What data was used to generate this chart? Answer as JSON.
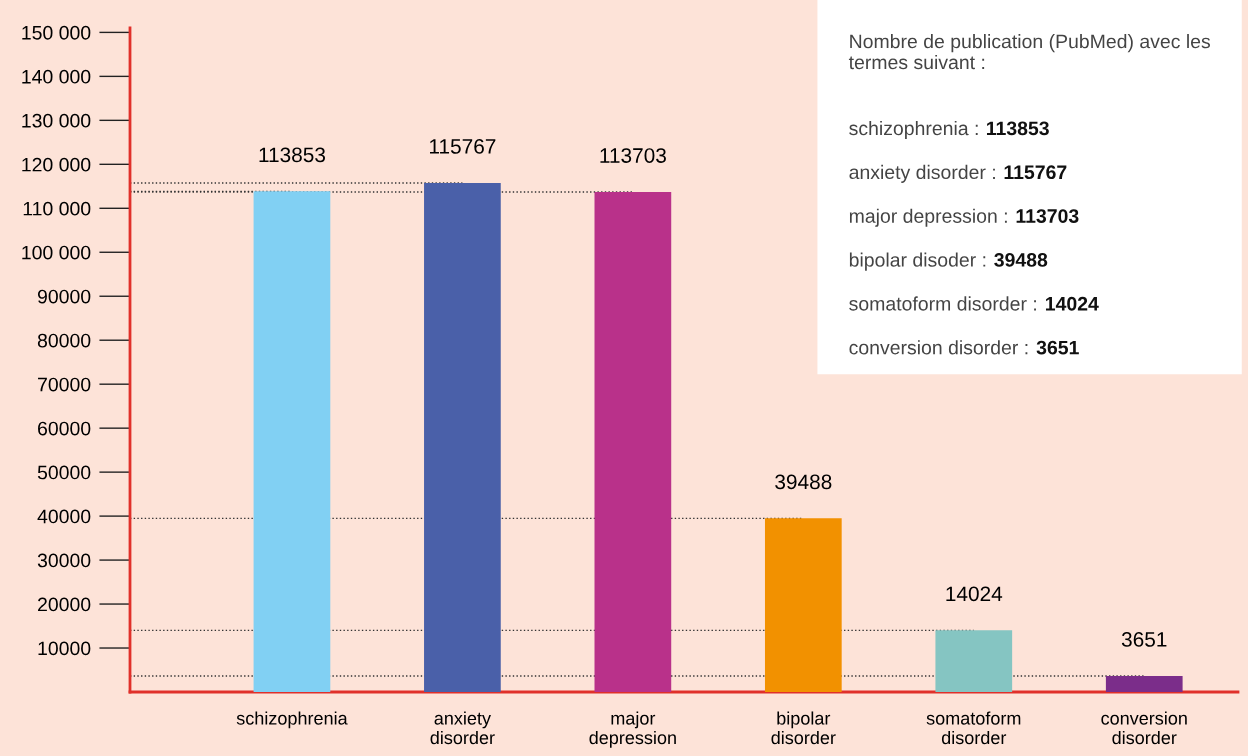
{
  "chart_data": {
    "type": "bar",
    "categories": [
      "schizophrenia",
      "anxiety\ndisorder",
      "major\ndepression",
      "bipolar\ndisorder",
      "somatoform\ndisorder",
      "conversion\ndisorder"
    ],
    "values": [
      113853,
      115767,
      113703,
      39488,
      14024,
      3651
    ],
    "colors": [
      "#81d0f3",
      "#4a60a9",
      "#b9318a",
      "#f29100",
      "#85c5c2",
      "#7b2d8a"
    ],
    "data_labels": true,
    "ylim": [
      0,
      151000
    ],
    "yticks": [
      10000,
      20000,
      30000,
      40000,
      50000,
      60000,
      70000,
      80000,
      90000,
      {
        "value": 100000,
        "label": "100 000"
      },
      {
        "value": 110000,
        "label": "110 000"
      },
      {
        "value": 120000,
        "label": "120 000"
      },
      {
        "value": 130000,
        "label": "130 000"
      },
      {
        "value": 140000,
        "label": "140 000"
      },
      {
        "value": 150000,
        "label": "150 000"
      }
    ],
    "ref_lines": [
      {
        "axis": "y",
        "value": 113853,
        "line_style": "dotted",
        "color": "#333333"
      },
      {
        "axis": "y",
        "value": 115767,
        "line_style": "dotted",
        "color": "#333333"
      },
      {
        "axis": "y",
        "value": 113703,
        "line_style": "dotted",
        "color": "#333333"
      },
      {
        "axis": "y",
        "value": 39488,
        "line_style": "dotted",
        "color": "#333333"
      },
      {
        "axis": "y",
        "value": 14024,
        "line_style": "dotted",
        "color": "#333333"
      },
      {
        "axis": "y",
        "value": 3651,
        "line_style": "dotted",
        "color": "#333333"
      }
    ],
    "grid": false,
    "annotations": [
      "Nombre de publication (PubMed) avec les termes suivant :",
      "schizophrenia : 113853",
      "anxiety disorder : 115767",
      "major depression : 113703",
      "bipolar disoder : 39488",
      "somatoform disorder : 14024",
      "conversion disorder : 3651"
    ]
  }
}
